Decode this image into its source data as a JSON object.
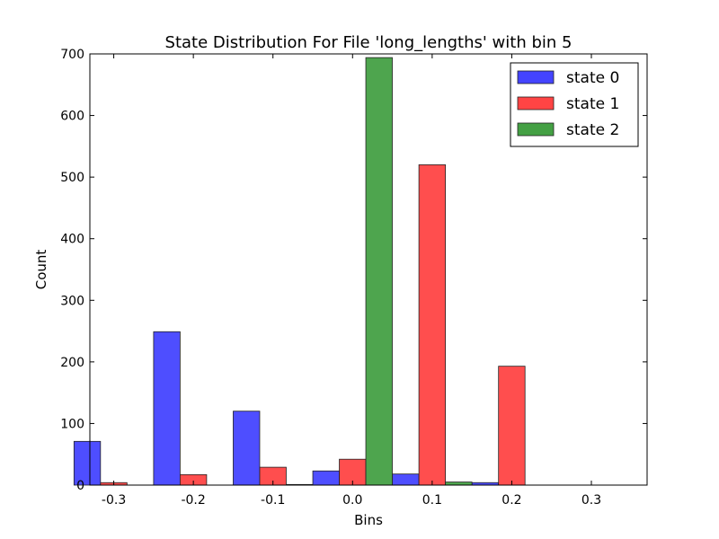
{
  "chart_data": {
    "type": "bar",
    "title": "State Distribution For File 'long_lengths' with bin 5",
    "xlabel": "Bins",
    "ylabel": "Count",
    "categories": [
      "-0.3",
      "-0.2",
      "-0.1",
      "0.0",
      "0.1",
      "0.2",
      "0.3"
    ],
    "xlim": [
      -0.33,
      0.37
    ],
    "ylim": [
      0,
      700
    ],
    "yticks": [
      0,
      100,
      200,
      300,
      400,
      500,
      600,
      700
    ],
    "series": [
      {
        "name": "state 0",
        "color": "#4444ff",
        "values": [
          71,
          249,
          120,
          23,
          18,
          4,
          0
        ]
      },
      {
        "name": "state 1",
        "color": "#ff4444",
        "values": [
          4,
          17,
          29,
          42,
          520,
          193,
          0
        ]
      },
      {
        "name": "state 2",
        "color": "#44a044",
        "values": [
          0,
          0,
          1,
          694,
          5,
          0,
          0
        ]
      }
    ],
    "legend": "top-right",
    "grid": false
  }
}
